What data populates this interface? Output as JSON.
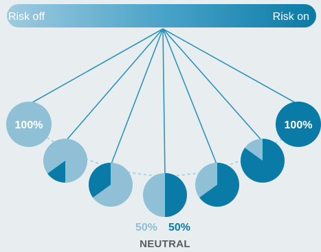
{
  "header": {
    "left_label": "Risk off",
    "right_label": "Risk on"
  },
  "colors": {
    "light": "#8fc0d6",
    "dark": "#0a7ba6",
    "string": "#2a93bd",
    "arc": "#a9d3e4",
    "neutral_text": "#555d62",
    "background": "#e8eef0"
  },
  "balls": [
    {
      "risk_on_fraction": 0.0,
      "label": "100%"
    },
    {
      "risk_on_fraction": 0.15
    },
    {
      "risk_on_fraction": 0.35
    },
    {
      "risk_on_fraction": 0.5
    },
    {
      "risk_on_fraction": 0.65
    },
    {
      "risk_on_fraction": 0.85
    },
    {
      "risk_on_fraction": 1.0,
      "label": "100%"
    }
  ],
  "neutral": {
    "left_pct": "50%",
    "right_pct": "50%",
    "label": "NEUTRAL"
  }
}
